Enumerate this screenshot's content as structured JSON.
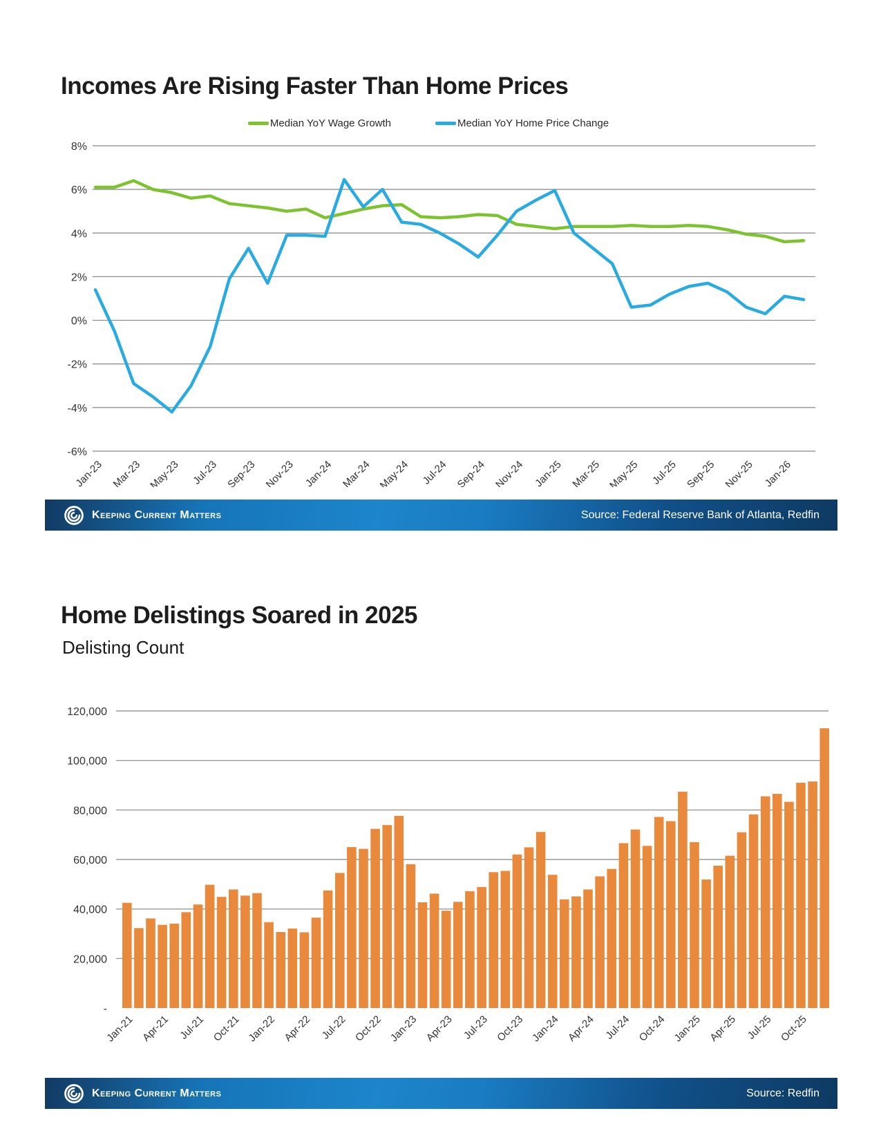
{
  "footer": {
    "brand": "Keeping Current Matters"
  },
  "colors": {
    "wage_green": "#7CC32F",
    "price_blue": "#29ABE2",
    "bar_orange": "#E8893C",
    "grid": "#858585",
    "axis_text": "#333333"
  },
  "chart_data": [
    {
      "type": "line",
      "title": "Incomes Are Rising Faster Than Home Prices",
      "x": [
        "Jan-23",
        "Feb-23",
        "Mar-23",
        "Apr-23",
        "May-23",
        "Jun-23",
        "Jul-23",
        "Aug-23",
        "Sep-23",
        "Oct-23",
        "Nov-23",
        "Dec-23",
        "Jan-24",
        "Feb-24",
        "Mar-24",
        "Apr-24",
        "May-24",
        "Jun-24",
        "Jul-24",
        "Aug-24",
        "Sep-24",
        "Oct-24",
        "Nov-24",
        "Dec-24",
        "Jan-25",
        "Feb-25",
        "Mar-25",
        "Apr-25",
        "May-25",
        "Jun-25",
        "Jul-25",
        "Aug-25",
        "Sep-25",
        "Oct-25",
        "Nov-25",
        "Dec-25",
        "Jan-26",
        "Feb-26"
      ],
      "series": [
        {
          "name": "Median YoY Wage Growth",
          "color": "#7CC32F",
          "values": [
            6.1,
            6.1,
            6.4,
            6.0,
            5.85,
            5.6,
            5.7,
            5.35,
            5.25,
            5.15,
            5.0,
            5.1,
            4.7,
            4.9,
            5.1,
            5.25,
            5.3,
            4.75,
            4.7,
            4.75,
            4.85,
            4.8,
            4.4,
            4.3,
            4.2,
            4.3,
            4.3,
            4.3,
            4.35,
            4.3,
            4.3,
            4.35,
            4.3,
            4.15,
            3.95,
            3.85,
            3.6,
            3.65
          ]
        },
        {
          "name": "Median YoY Home Price Change",
          "color": "#29ABE2",
          "values": [
            1.4,
            -0.5,
            -2.9,
            -3.5,
            -4.2,
            -3.0,
            -1.2,
            1.9,
            3.3,
            1.7,
            3.9,
            3.9,
            3.85,
            6.45,
            5.2,
            6.0,
            4.5,
            4.4,
            4.0,
            3.5,
            2.9,
            3.9,
            5.0,
            5.5,
            5.95,
            4.0,
            3.3,
            2.6,
            0.6,
            0.7,
            1.2,
            1.55,
            1.7,
            1.3,
            0.6,
            0.3,
            1.1,
            0.95
          ]
        }
      ],
      "ylim": [
        -6,
        8
      ],
      "grid": true,
      "legend_position": "top",
      "y_ticks": [
        {
          "label": "8%",
          "value": 8
        },
        {
          "label": "6%",
          "value": 6
        },
        {
          "label": "4%",
          "value": 4
        },
        {
          "label": "2%",
          "value": 2
        },
        {
          "label": "0%",
          "value": 0
        },
        {
          "label": "-2%",
          "value": -2
        },
        {
          "label": "-4%",
          "value": -4
        },
        {
          "label": "-6%",
          "value": -6
        }
      ],
      "x_tick_labels": [
        "Jan-23",
        "Mar-23",
        "May-23",
        "Jul-23",
        "Sep-23",
        "Nov-23",
        "Jan-24",
        "Mar-24",
        "May-24",
        "Jul-24",
        "Sep-24",
        "Nov-24",
        "Jan-25",
        "Mar-25",
        "May-25",
        "Jul-25",
        "Sep-25",
        "Nov-25",
        "Jan-26"
      ],
      "x_tick_step": 2,
      "source": "Source: Federal Reserve Bank of Atlanta, Redfin"
    },
    {
      "type": "bar",
      "title": "Home Delistings Soared in 2025",
      "ylabel": "Delisting Count",
      "categories": [
        "Jan-21",
        "Feb-21",
        "Mar-21",
        "Apr-21",
        "May-21",
        "Jun-21",
        "Jul-21",
        "Aug-21",
        "Sep-21",
        "Oct-21",
        "Nov-21",
        "Dec-21",
        "Jan-22",
        "Feb-22",
        "Mar-22",
        "Apr-22",
        "May-22",
        "Jun-22",
        "Jul-22",
        "Aug-22",
        "Sep-22",
        "Oct-22",
        "Nov-22",
        "Dec-22",
        "Jan-23",
        "Feb-23",
        "Mar-23",
        "Apr-23",
        "May-23",
        "Jun-23",
        "Jul-23",
        "Aug-23",
        "Sep-23",
        "Oct-23",
        "Nov-23",
        "Dec-23",
        "Jan-24",
        "Feb-24",
        "Mar-24",
        "Apr-24",
        "May-24",
        "Jun-24",
        "Jul-24",
        "Aug-24",
        "Sep-24",
        "Oct-24",
        "Nov-24",
        "Dec-24",
        "Jan-25",
        "Feb-25",
        "Mar-25",
        "Apr-25",
        "May-25",
        "Jun-25",
        "Jul-25",
        "Aug-25",
        "Sep-25",
        "Oct-25",
        "Nov-25",
        "Dec-25"
      ],
      "values": [
        42500,
        32300,
        36200,
        33600,
        34100,
        38700,
        41800,
        49800,
        44900,
        47900,
        45400,
        46400,
        34700,
        30700,
        32100,
        30600,
        36500,
        47500,
        54600,
        65000,
        64300,
        72400,
        73900,
        77600,
        58100,
        42700,
        46200,
        39300,
        42900,
        47200,
        48900,
        54900,
        55400,
        62000,
        64900,
        71100,
        53800,
        43900,
        45100,
        47900,
        53200,
        56200,
        66600,
        72100,
        65500,
        77200,
        75500,
        87400,
        67000,
        51900,
        57500,
        61500,
        71000,
        78200,
        85500,
        86500,
        83300,
        91000,
        91500,
        113000
      ],
      "bar_color": "#E8893C",
      "ylim": [
        0,
        120000
      ],
      "grid": true,
      "y_ticks": [
        {
          "label": "120,000",
          "value": 120000
        },
        {
          "label": "100,000",
          "value": 100000
        },
        {
          "label": "80,000",
          "value": 80000
        },
        {
          "label": "60,000",
          "value": 60000
        },
        {
          "label": "40,000",
          "value": 40000
        },
        {
          "label": "20,000",
          "value": 20000
        },
        {
          "label": "-",
          "value": 0
        }
      ],
      "x_tick_labels": [
        "Jan-21",
        "Apr-21",
        "Jul-21",
        "Oct-21",
        "Jan-22",
        "Apr-22",
        "Jul-22",
        "Oct-22",
        "Jan-23",
        "Apr-23",
        "Jul-23",
        "Oct-23",
        "Jan-24",
        "Apr-24",
        "Jul-24",
        "Oct-24",
        "Jan-25",
        "Apr-25",
        "Jul-25",
        "Oct-25"
      ],
      "x_tick_step": 3,
      "source": "Source: Redfin"
    }
  ]
}
